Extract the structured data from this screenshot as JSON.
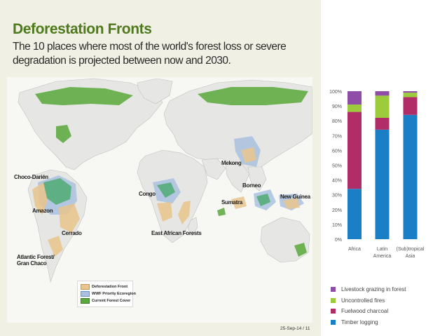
{
  "slide": {
    "title": "Deforestation Fronts",
    "subtitle": "The 10 places where most of the world's forest loss or severe degradation is projected between now and 2030.",
    "footer": "25-Sep-14  /  11"
  },
  "map": {
    "labels": [
      {
        "id": "choco-darien",
        "text": "Choco-Darién"
      },
      {
        "id": "amazon",
        "text": "Amazon"
      },
      {
        "id": "cerrado",
        "text": "Cerrado"
      },
      {
        "id": "atlantic-forest",
        "text": "Atlantic Forest/ Gran Chaco"
      },
      {
        "id": "congo",
        "text": "Congo"
      },
      {
        "id": "east-african-forests",
        "text": "East African Forests"
      },
      {
        "id": "mekong",
        "text": "Mekong"
      },
      {
        "id": "borneo",
        "text": "Borneo"
      },
      {
        "id": "sumatra",
        "text": "Sumatra"
      },
      {
        "id": "new-guinea",
        "text": "New Guinea"
      }
    ],
    "legend": [
      {
        "label": "Deforestation Front",
        "color": "#e9c58d"
      },
      {
        "label": "WWF Priority Ecoregion",
        "color": "#a7bfe0"
      },
      {
        "label": "Current Forest Cover",
        "color": "#58a83b"
      }
    ]
  },
  "chart_data": {
    "type": "bar",
    "stacked": true,
    "categories": [
      "Africa",
      "Latin America",
      "(Sub)tropical Asia"
    ],
    "category_lines": [
      [
        "Africa"
      ],
      [
        "Latin",
        "America"
      ],
      [
        "(Sub)tropical",
        "Asia"
      ]
    ],
    "series": [
      {
        "name": "Timber logging",
        "color": "#1a7fc4",
        "values": [
          34,
          74,
          84
        ]
      },
      {
        "name": "Fuelwood charcoal",
        "color": "#b02d68",
        "values": [
          52,
          8,
          12
        ]
      },
      {
        "name": "Uncontrolled fires",
        "color": "#9ccc3c",
        "values": [
          5,
          15,
          3
        ]
      },
      {
        "name": "Livestock grazing in forest",
        "color": "#8f4da8",
        "values": [
          9,
          3,
          1
        ]
      }
    ],
    "legend_order": [
      "Livestock grazing in forest",
      "Uncontrolled fires",
      "Fuelwood charcoal",
      "Timber logging"
    ],
    "yticks": [
      0,
      10,
      20,
      30,
      40,
      50,
      60,
      70,
      80,
      90,
      100
    ],
    "ytick_labels": [
      "0%",
      "10%",
      "20%",
      "30%",
      "40%",
      "50%",
      "60%",
      "70%",
      "80%",
      "90%",
      "100%"
    ],
    "ylim": [
      0,
      100
    ],
    "title": "",
    "xlabel": "",
    "ylabel": "",
    "grid": false,
    "legend_position": "bottom"
  }
}
